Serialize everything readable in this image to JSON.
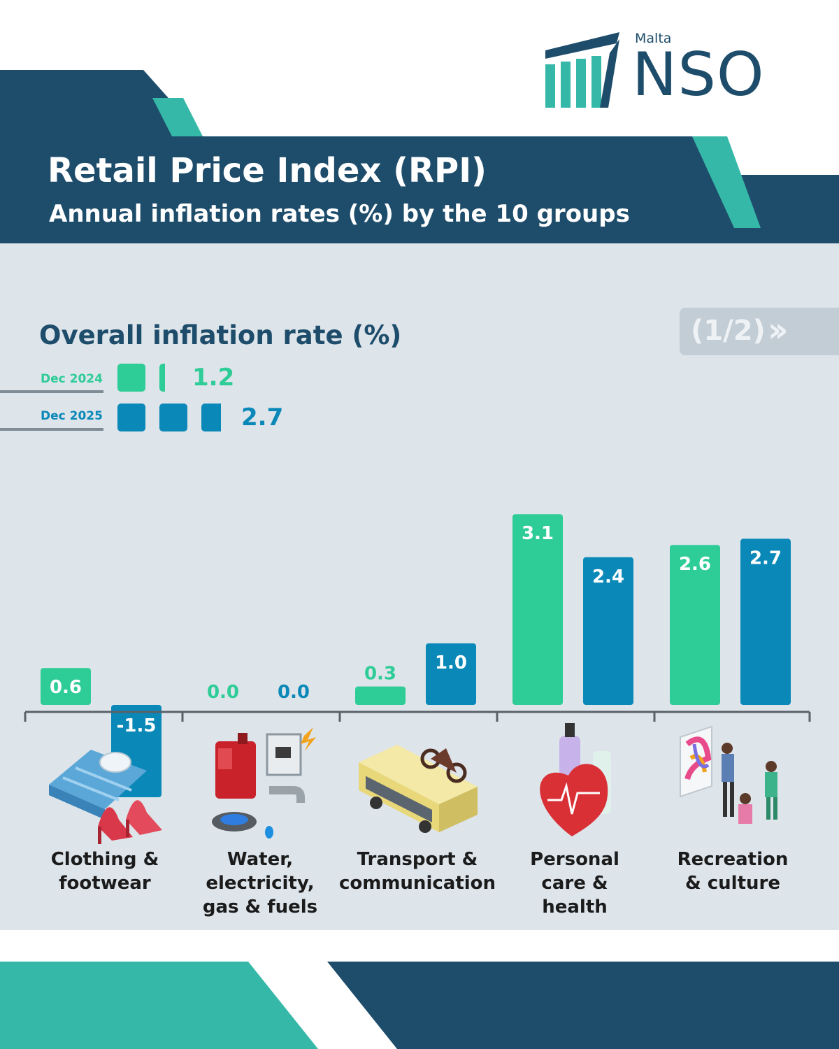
{
  "header": {
    "title": "Retail Price Index (RPI)",
    "subtitle": "Annual inflation rates (%) by the 10 groups"
  },
  "logo": {
    "country": "Malta",
    "name": "NSO"
  },
  "overall": {
    "title": "Overall inflation rate (%)",
    "rows": [
      {
        "label": "Dec 2024",
        "value": "1.2",
        "color": "#2ecc96"
      },
      {
        "label": "Dec 2025",
        "value": "2.7",
        "color": "#0a88b8"
      }
    ]
  },
  "pager": {
    "label": "(1/2)",
    "icon": "double-chevron-right-icon"
  },
  "colors": {
    "navy": "#1e4d6b",
    "teal": "#35b8a8",
    "green": "#2ecc96",
    "blue": "#0a88b8",
    "panel": "#dde4ea"
  },
  "chart_data": {
    "type": "bar",
    "categories": [
      "Clothing & footwear",
      "Water, electricity, gas & fuels",
      "Transport & communication",
      "Personal care & health",
      "Recreation & culture"
    ],
    "series": [
      {
        "name": "Dec 2024",
        "values": [
          0.6,
          0.0,
          0.3,
          3.1,
          2.6
        ],
        "labels": [
          "0.6",
          "0.0",
          "0.3",
          "3.1",
          "2.6"
        ]
      },
      {
        "name": "Dec 2025",
        "values": [
          -1.5,
          0.0,
          1.0,
          2.4,
          2.7
        ],
        "labels": [
          "-1.5",
          "0.0",
          "1.0",
          "2.4",
          "2.7"
        ]
      }
    ],
    "ylim": [
      -2.0,
      3.1
    ],
    "grid": false,
    "legend": "top-left"
  },
  "category_labels": [
    "Clothing &\nfootwear",
    "Water,\nelectricity,\ngas & fuels",
    "Transport &\ncommunication",
    "Personal\ncare &\nhealth",
    "Recreation\n& culture"
  ],
  "category_icons": [
    "shirt-and-shoes-icon",
    "utilities-icon",
    "bus-and-motorbike-icon",
    "heart-and-cosmetics-icon",
    "art-gallery-icon"
  ]
}
